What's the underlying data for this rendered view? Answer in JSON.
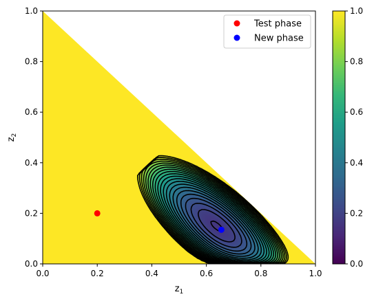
{
  "chart_data": {
    "type": "heatmap",
    "xlabel": "z",
    "xlabel_sub": "1",
    "ylabel": "z",
    "ylabel_sub": "2",
    "xlim": [
      0.0,
      1.0
    ],
    "ylim": [
      0.0,
      1.0
    ],
    "xticks": [
      "0.0",
      "0.2",
      "0.4",
      "0.6",
      "0.8",
      "1.0"
    ],
    "yticks": [
      "0.0",
      "0.2",
      "0.4",
      "0.6",
      "0.8",
      "1.0"
    ],
    "xtick_values": [
      0.0,
      0.2,
      0.4,
      0.6,
      0.8,
      1.0
    ],
    "ytick_values": [
      0.0,
      0.2,
      0.4,
      0.6,
      0.8,
      1.0
    ],
    "domain": "simplex z1 + z2 <= 1",
    "colormap": "viridis",
    "colorbar": {
      "range": [
        0.0,
        1.0
      ],
      "ticks": [
        "0.0",
        "0.2",
        "0.4",
        "0.6",
        "0.8",
        "1.0"
      ],
      "tick_values": [
        0.0,
        0.2,
        0.4,
        0.6,
        0.8,
        1.0
      ]
    },
    "contour_levels": [
      0.04,
      0.08,
      0.12,
      0.16,
      0.2,
      0.24,
      0.28,
      0.32,
      0.36,
      0.4,
      0.44,
      0.48,
      0.52,
      0.56,
      0.6,
      0.64,
      0.68,
      0.72,
      0.76,
      0.8,
      0.84,
      0.88,
      0.92,
      0.96
    ],
    "dashed_contour_level": 0.02,
    "series": [
      {
        "name": "Test phase",
        "color": "#ff0000",
        "points": [
          {
            "x": 0.2,
            "y": 0.2
          }
        ]
      },
      {
        "name": "New phase",
        "color": "#0000ff",
        "points": [
          {
            "x": 0.655,
            "y": 0.135
          }
        ]
      }
    ],
    "legend": "top-right"
  }
}
